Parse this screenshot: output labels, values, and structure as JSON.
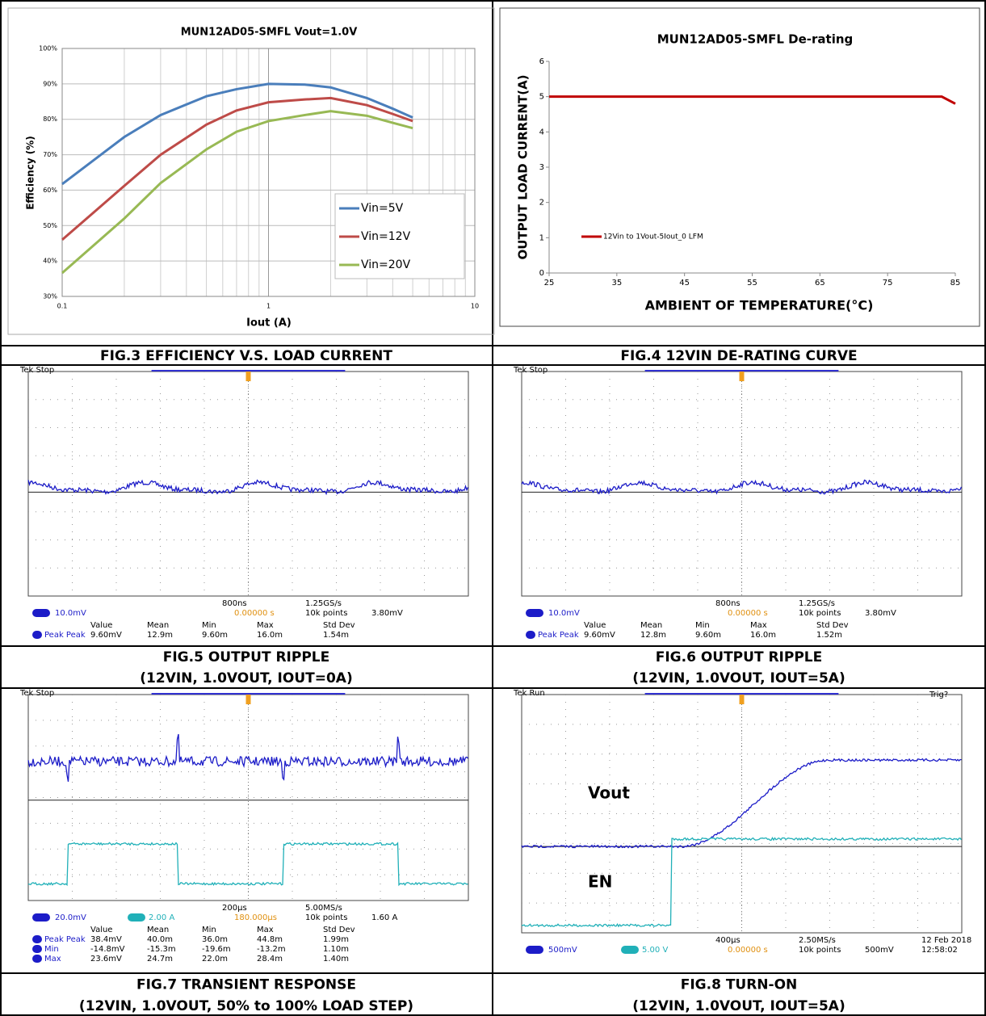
{
  "chart_data": [
    {
      "type": "line",
      "title": "MUN12AD05-SMFL Vout=1.0V",
      "x_label": "Iout  (A)",
      "y_label": "Efficiency (%)",
      "log_x": true,
      "grid": true,
      "legend": "lower right",
      "xlim": [
        0.1,
        10
      ],
      "xticks": [
        0.1,
        1,
        10
      ],
      "ylim": [
        30,
        100
      ],
      "yticks": [
        {
          "value": 30,
          "label": "30%"
        },
        {
          "value": 40,
          "label": "40%"
        },
        {
          "value": 50,
          "label": "50%"
        },
        {
          "value": 60,
          "label": "60%"
        },
        {
          "value": 70,
          "label": "70%"
        },
        {
          "value": 80,
          "label": "80%"
        },
        {
          "value": 90,
          "label": "90%"
        },
        {
          "value": 100,
          "label": "100%"
        }
      ],
      "x": [
        0.1,
        0.2,
        0.3,
        0.5,
        0.7,
        1,
        1.5,
        2,
        3,
        4,
        5
      ],
      "series": [
        {
          "name": "Vin=5V",
          "color": "#4a7ebb",
          "values": [
            61.7,
            75,
            81.2,
            86.5,
            88.5,
            90,
            89.8,
            89,
            86,
            83,
            80.5
          ]
        },
        {
          "name": "Vin=12V",
          "color": "#be4b48",
          "values": [
            46,
            61.2,
            70,
            78.5,
            82.5,
            84.8,
            85.6,
            86,
            84,
            81.5,
            79.5
          ]
        },
        {
          "name": "Vin=20V",
          "color": "#98b954",
          "values": [
            36.6,
            52,
            62,
            71.5,
            76.5,
            79.5,
            81.2,
            82.3,
            81,
            79,
            77.5
          ]
        }
      ]
    },
    {
      "type": "line",
      "title": "MUN12AD05-SMFL De-rating",
      "x_label": "AMBIENT OF TEMPERATURE(°C)",
      "y_label": "OUTPUT LOAD CURRENT(A)",
      "grid": false,
      "legend": "center left",
      "xlim": [
        25,
        85
      ],
      "xticks": [
        25,
        35,
        45,
        55,
        65,
        75,
        85
      ],
      "ylim": [
        0,
        6
      ],
      "yticks": [
        0,
        1,
        2,
        3,
        4,
        5,
        6
      ],
      "x": [
        25,
        83,
        85
      ],
      "series": [
        {
          "name": "12Vin to 1Vout-5Iout_0 LFM",
          "color": "#c00000",
          "values": [
            5,
            5,
            4.8
          ]
        }
      ]
    }
  ],
  "captions": [
    {
      "lines": [
        "FIG.3    EFFICIENCY V.S. LOAD CURRENT"
      ]
    },
    {
      "lines": [
        "FIG.4   12VIN DE-RATING CURVE"
      ]
    },
    {
      "lines": [
        "FIG.5    OUTPUT RIPPLE",
        "(12VIN, 1.0VOUT, IOUT=0A)"
      ]
    },
    {
      "lines": [
        "FIG.6    OUTPUT RIPPLE",
        "(12VIN, 1.0VOUT, IOUT=5A)"
      ]
    },
    {
      "lines": [
        "FIG.7    TRANSIENT RESPONSE",
        "(12VIN, 1.0VOUT, 50% to 100% LOAD STEP)"
      ]
    },
    {
      "lines": [
        "FIG.8    TURN-ON",
        "(12VIN, 1.0VOUT, IOUT=5A)"
      ]
    }
  ],
  "scopes": [
    {
      "status": "Tek Stop",
      "ch1": "10.0mV",
      "timebase": "800ns",
      "sample_rate": "1.25GS/s",
      "record": "10k points",
      "trigger_level": "3.80mV",
      "trigger_pos": "0.00000 s",
      "meas_header": [
        "Value",
        "Mean",
        "Min",
        "Max",
        "Std Dev"
      ],
      "meas": [
        [
          "Peak Peak",
          "9.60mV",
          "12.9m",
          "9.60m",
          "16.0m",
          "1.54m"
        ]
      ]
    },
    {
      "status": "Tek Stop",
      "ch1": "10.0mV",
      "timebase": "800ns",
      "sample_rate": "1.25GS/s",
      "record": "10k points",
      "trigger_level": "3.80mV",
      "trigger_pos": "0.00000 s",
      "meas_header": [
        "Value",
        "Mean",
        "Min",
        "Max",
        "Std Dev"
      ],
      "meas": [
        [
          "Peak Peak",
          "9.60mV",
          "12.8m",
          "9.60m",
          "16.0m",
          "1.52m"
        ]
      ]
    },
    {
      "status": "Tek Stop",
      "ch1": "20.0mV",
      "ch2": "2.00 A",
      "timebase": "200µs",
      "sample_rate": "5.00MS/s",
      "record": "10k points",
      "trigger_level": "1.60 A",
      "trigger_pos": "180.000µs",
      "meas_header": [
        "Value",
        "Mean",
        "Min",
        "Max",
        "Std Dev"
      ],
      "meas": [
        [
          "Peak Peak",
          "38.4mV",
          "40.0m",
          "36.0m",
          "44.8m",
          "1.99m"
        ],
        [
          "Min",
          "-14.8mV",
          "-15.3m",
          "-19.6m",
          "-13.2m",
          "1.10m"
        ],
        [
          "Max",
          "23.6mV",
          "24.7m",
          "22.0m",
          "28.4m",
          "1.40m"
        ]
      ]
    },
    {
      "status": "Tek Run",
      "trig_state": "Trig?",
      "ch1": "500mV",
      "ch2": "5.00 V",
      "timebase": "400µs",
      "sample_rate": "2.50MS/s",
      "record": "10k points",
      "trigger_level": "500mV",
      "trigger_pos": "0.00000 s",
      "date": "12 Feb 2018",
      "time": "12:58:02",
      "annotations": [
        "Vout",
        "EN"
      ]
    }
  ]
}
